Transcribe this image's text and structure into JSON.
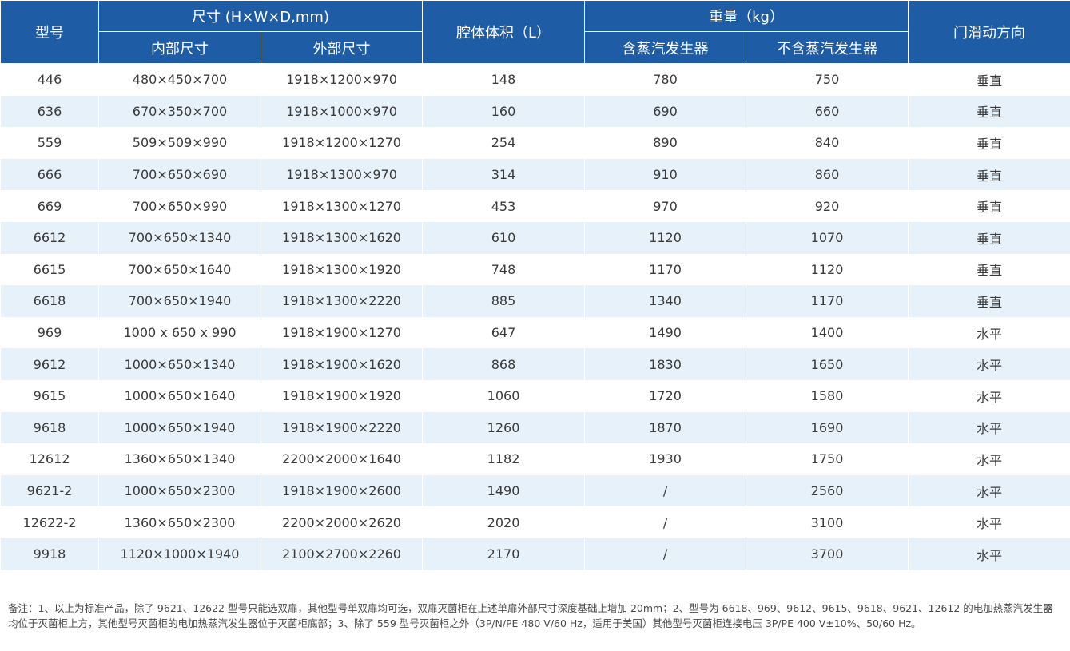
{
  "header": {
    "model": "型号",
    "size_group": "尺寸 (H×W×D,mm)",
    "inner_size": "内部尺寸",
    "outer_size": "外部尺寸",
    "volume": "腔体体积（L）",
    "weight_group": "重量（kg）",
    "with_steam": "含蒸汽发生器",
    "without_steam": "不含蒸汽发生器",
    "door_direction": "门滑动方向"
  },
  "rows": [
    {
      "model": "446",
      "inner": "480×450×700",
      "outer": "1918×1200×970",
      "volume": "148",
      "w_steam": "780",
      "wo_steam": "750",
      "door": "垂直"
    },
    {
      "model": "636",
      "inner": "670×350×700",
      "outer": "1918×1000×970",
      "volume": "160",
      "w_steam": "690",
      "wo_steam": "660",
      "door": "垂直"
    },
    {
      "model": "559",
      "inner": "509×509×990",
      "outer": "1918×1200×1270",
      "volume": "254",
      "w_steam": "890",
      "wo_steam": "840",
      "door": "垂直"
    },
    {
      "model": "666",
      "inner": "700×650×690",
      "outer": "1918×1300×970",
      "volume": "314",
      "w_steam": "910",
      "wo_steam": "860",
      "door": "垂直"
    },
    {
      "model": "669",
      "inner": "700×650×990",
      "outer": "1918×1300×1270",
      "volume": "453",
      "w_steam": "970",
      "wo_steam": "920",
      "door": "垂直"
    },
    {
      "model": "6612",
      "inner": "700×650×1340",
      "outer": "1918×1300×1620",
      "volume": "610",
      "w_steam": "1120",
      "wo_steam": "1070",
      "door": "垂直"
    },
    {
      "model": "6615",
      "inner": "700×650×1640",
      "outer": "1918×1300×1920",
      "volume": "748",
      "w_steam": "1170",
      "wo_steam": "1120",
      "door": "垂直"
    },
    {
      "model": "6618",
      "inner": "700×650×1940",
      "outer": "1918×1300×2220",
      "volume": "885",
      "w_steam": "1340",
      "wo_steam": "1170",
      "door": "垂直"
    },
    {
      "model": "969",
      "inner": "1000 x 650 x 990",
      "outer": "1918×1900×1270",
      "volume": "647",
      "w_steam": "1490",
      "wo_steam": "1400",
      "door": "水平"
    },
    {
      "model": "9612",
      "inner": "1000×650×1340",
      "outer": "1918×1900×1620",
      "volume": "868",
      "w_steam": "1830",
      "wo_steam": "1650",
      "door": "水平"
    },
    {
      "model": "9615",
      "inner": "1000×650×1640",
      "outer": "1918×1900×1920",
      "volume": "1060",
      "w_steam": "1720",
      "wo_steam": "1580",
      "door": "水平"
    },
    {
      "model": "9618",
      "inner": "1000×650×1940",
      "outer": "1918×1900×2220",
      "volume": "1260",
      "w_steam": "1870",
      "wo_steam": "1690",
      "door": "水平"
    },
    {
      "model": "12612",
      "inner": "1360×650×1340",
      "outer": "2200×2000×1640",
      "volume": "1182",
      "w_steam": "1930",
      "wo_steam": "1750",
      "door": "水平"
    },
    {
      "model": "9621-2",
      "inner": "1000×650×2300",
      "outer": "1918×1900×2600",
      "volume": "1490",
      "w_steam": "/",
      "wo_steam": "2560",
      "door": "水平"
    },
    {
      "model": "12622-2",
      "inner": "1360×650×2300",
      "outer": "2200×2000×2620",
      "volume": "2020",
      "w_steam": "/",
      "wo_steam": "3100",
      "door": "水平"
    },
    {
      "model": "9918",
      "inner": "1120×1000×1940",
      "outer": "2100×2700×2260",
      "volume": "2170",
      "w_steam": "/",
      "wo_steam": "3700",
      "door": "水平"
    }
  ],
  "note": "备注：1、以上为标准产品，除了 9621、12622 型号只能选双扉，其他型号单双扉均可选，双扉灭菌柜在上述单扉外部尺寸深度基础上增加 20mm；2、型号为 6618、969、9612、9615、9618、9621、12612 的电加热蒸汽发生器均位于灭菌柜上方，其他型号灭菌柜的电加热蒸汽发生器位于灭菌柜底部；3、除了 559 型号灭菌柜之外（3P/N/PE 480 V/60 Hz，适用于美国）其他型号灭菌柜连接电压 3P/PE 400 V±10%、50/60 Hz。",
  "colors": {
    "header_bg": "#1f5ca6",
    "stripe_bg": "#e6f1fa"
  }
}
